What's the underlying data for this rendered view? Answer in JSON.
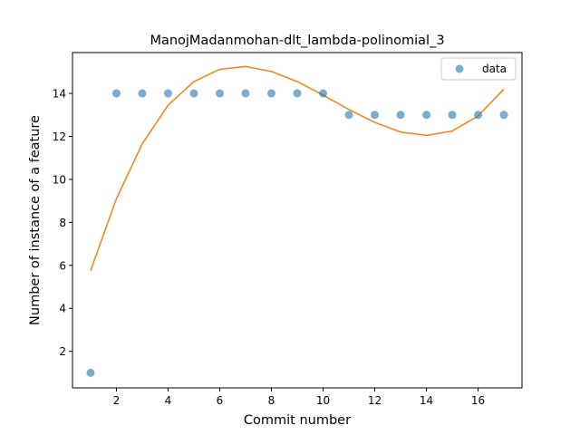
{
  "chart_data": {
    "type": "scatter",
    "title": "ManojMadanmohan-dlt_lambda-polinomial_3",
    "xlabel": "Commit number",
    "ylabel": "Number of instance of a feature",
    "xlim": [
      0.3,
      17.7
    ],
    "ylim": [
      0.3,
      15.9
    ],
    "xticks": [
      2,
      4,
      6,
      8,
      10,
      12,
      14,
      16
    ],
    "yticks": [
      2,
      4,
      6,
      8,
      10,
      12,
      14
    ],
    "grid": false,
    "legend_position": "top-right",
    "series": [
      {
        "name": "data",
        "kind": "scatter",
        "color": "#1f77b4",
        "x": [
          1,
          2,
          3,
          4,
          5,
          6,
          7,
          8,
          9,
          10,
          11,
          12,
          13,
          14,
          15,
          16,
          17
        ],
        "y": [
          1,
          14,
          14,
          14,
          14,
          14,
          14,
          14,
          14,
          14,
          13,
          13,
          13,
          13,
          13,
          13,
          13
        ]
      },
      {
        "kind": "line",
        "color": "#ff7f0e",
        "x": [
          1,
          2,
          3,
          4,
          5,
          6,
          7,
          8,
          9,
          10,
          11,
          12,
          13,
          14,
          15,
          16,
          17
        ],
        "y": [
          5.75,
          9.1,
          11.65,
          13.45,
          14.55,
          15.12,
          15.25,
          15.02,
          14.55,
          13.92,
          13.25,
          12.65,
          12.2,
          12.05,
          12.25,
          12.95,
          14.2
        ]
      }
    ]
  }
}
